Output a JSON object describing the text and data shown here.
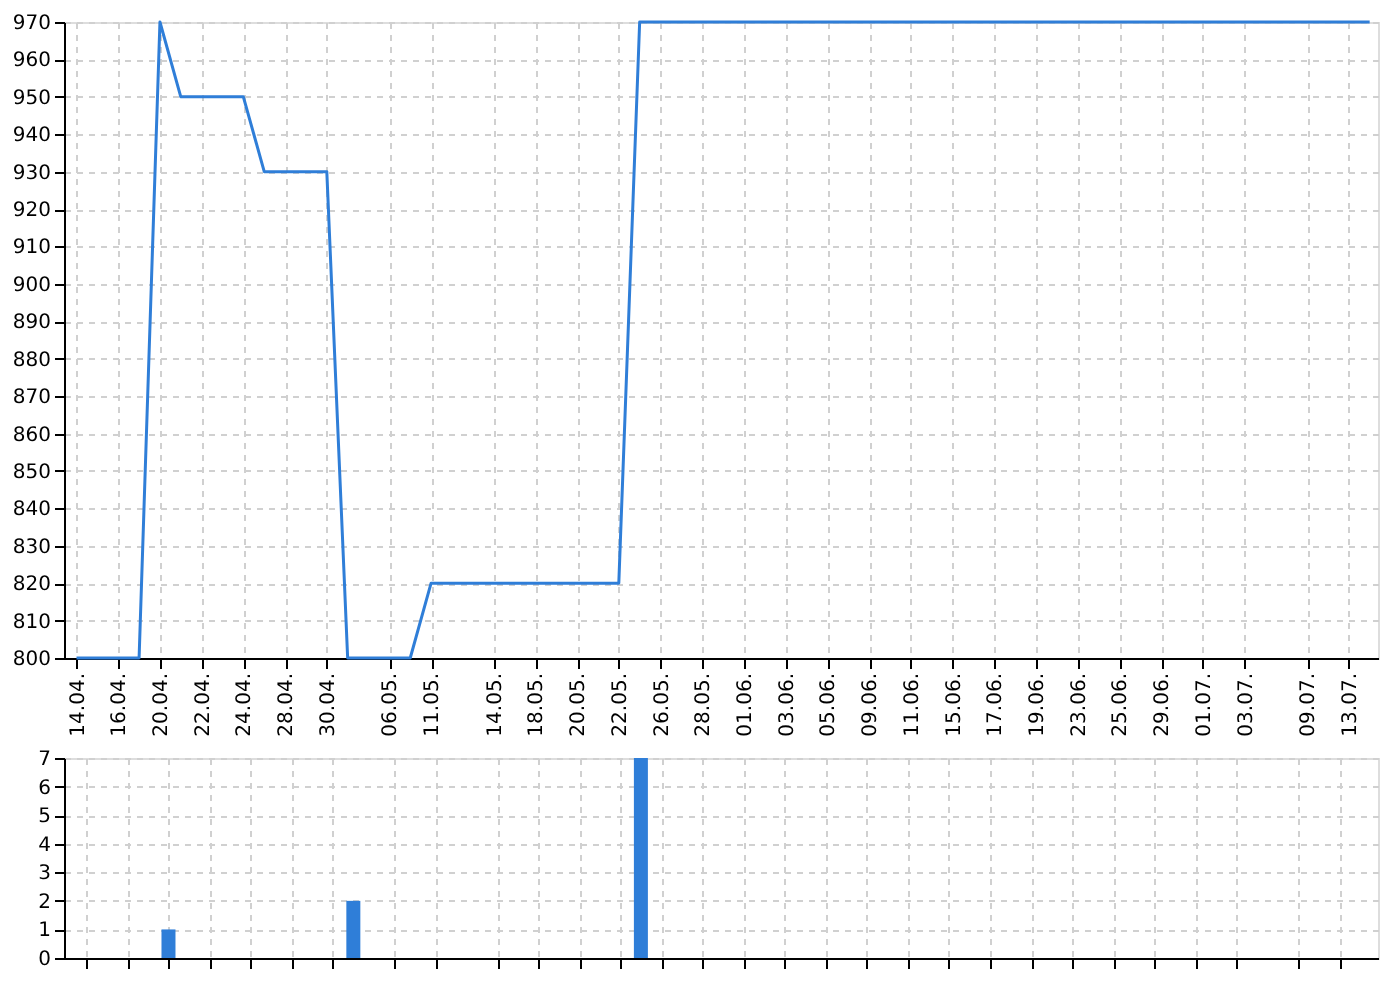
{
  "chart_data": [
    {
      "type": "line",
      "categories": [
        "14.04.",
        null,
        "16.04.",
        null,
        "20.04.",
        null,
        "22.04.",
        null,
        "24.04.",
        null,
        "28.04.",
        null,
        "30.04.",
        null,
        null,
        "06.05.",
        null,
        "11.05.",
        null,
        null,
        "14.05.",
        null,
        "18.05.",
        null,
        "20.05.",
        null,
        "22.05.",
        null,
        "26.05.",
        null,
        "28.05.",
        null,
        "01.06.",
        null,
        "03.06.",
        null,
        "05.06.",
        null,
        "09.06.",
        null,
        "11.06.",
        null,
        "15.06.",
        null,
        "17.06.",
        null,
        "19.06.",
        null,
        "23.06.",
        null,
        "25.06.",
        null,
        "29.06.",
        null,
        "01.07.",
        null,
        "03.07.",
        null,
        null,
        "09.07.",
        null,
        "13.07.",
        null
      ],
      "series": [
        {
          "color": "#2f7ed8",
          "values": [
            800,
            800,
            800,
            800,
            970,
            950,
            950,
            950,
            950,
            930,
            930,
            930,
            930,
            800,
            800,
            800,
            800,
            820,
            820,
            820,
            820,
            820,
            820,
            820,
            820,
            820,
            820,
            970,
            970,
            970,
            970,
            970,
            970,
            970,
            970,
            970,
            970,
            970,
            970,
            970,
            970,
            970,
            970,
            970,
            970,
            970,
            970,
            970,
            970,
            970,
            970,
            970,
            970,
            970,
            970,
            970,
            970,
            970,
            970,
            970,
            970,
            970,
            970
          ]
        }
      ],
      "ylim": [
        800,
        970
      ],
      "yticks": [
        800,
        810,
        820,
        830,
        840,
        850,
        860,
        870,
        880,
        890,
        900,
        910,
        920,
        930,
        940,
        950,
        960,
        970
      ],
      "grid": true,
      "marker": "none",
      "line_style": "solid"
    },
    {
      "type": "bar",
      "categories": [
        "14.04.",
        null,
        "16.04.",
        null,
        "20.04.",
        null,
        "22.04.",
        null,
        "24.04.",
        null,
        "28.04.",
        null,
        "30.04.",
        null,
        null,
        "06.05.",
        null,
        "11.05.",
        null,
        null,
        "14.05.",
        null,
        "18.05.",
        null,
        "20.05.",
        null,
        "22.05.",
        null,
        "26.05.",
        null,
        "28.05.",
        null,
        "01.06.",
        null,
        "03.06.",
        null,
        "05.06.",
        null,
        "09.06.",
        null,
        "11.06.",
        null,
        "15.06.",
        null,
        "17.06.",
        null,
        "19.06.",
        null,
        "23.06.",
        null,
        "25.06.",
        null,
        "29.06.",
        null,
        "01.07.",
        null,
        "03.07.",
        null,
        null,
        "09.07.",
        null,
        "13.07.",
        null
      ],
      "series": [
        {
          "color": "#2f7ed8",
          "values": [
            null,
            null,
            null,
            null,
            1,
            null,
            null,
            null,
            null,
            null,
            null,
            null,
            null,
            2,
            null,
            null,
            null,
            null,
            null,
            null,
            null,
            null,
            null,
            null,
            null,
            null,
            null,
            7,
            null,
            null,
            null,
            null,
            null,
            null,
            null,
            null,
            null,
            null,
            null,
            null,
            null,
            null,
            null,
            null,
            null,
            null,
            null,
            null,
            null,
            null,
            null,
            null,
            null,
            null,
            null,
            null,
            null,
            null,
            null,
            null,
            null,
            null,
            null
          ]
        }
      ],
      "ylim": [
        0,
        7
      ],
      "yticks": [
        0,
        1,
        2,
        3,
        4,
        5,
        6,
        7
      ],
      "grid": true,
      "tick_labels": "y"
    }
  ]
}
